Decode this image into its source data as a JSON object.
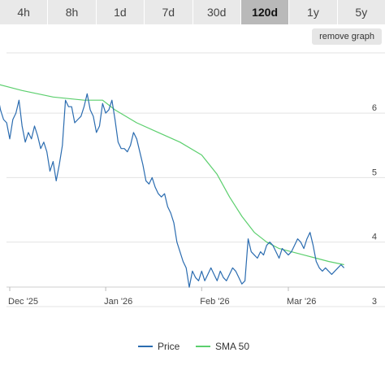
{
  "tabs": [
    {
      "label": "4h",
      "active": false
    },
    {
      "label": "8h",
      "active": false
    },
    {
      "label": "1d",
      "active": false
    },
    {
      "label": "7d",
      "active": false
    },
    {
      "label": "30d",
      "active": false
    },
    {
      "label": "120d",
      "active": true
    },
    {
      "label": "1y",
      "active": false
    },
    {
      "label": "5y",
      "active": false
    }
  ],
  "remove_graph_label": "remove graph",
  "legend": {
    "price_label": "Price",
    "sma_label": "SMA 50"
  },
  "colors": {
    "price": "#2b6cb0",
    "sma": "#5ccf6e",
    "grid": "#e3e3e3",
    "active_tab": "#b9b9b9"
  },
  "chart_data": {
    "type": "line",
    "title": "",
    "xlabel": "",
    "ylabel": "",
    "ylim": [
      3,
      7
    ],
    "yticks": [
      3,
      4,
      5,
      6
    ],
    "grid": "horizontal",
    "legend_position": "bottom",
    "xticks": [
      {
        "label": "Dec '25",
        "date": "2025-12-01"
      },
      {
        "label": "Jan '26",
        "date": "2026-01-01"
      },
      {
        "label": "Feb '26",
        "date": "2026-02-01"
      },
      {
        "label": "Mar '26",
        "date": "2026-03-01"
      }
    ],
    "xlim": [
      "2025-11-26",
      "2026-03-25"
    ],
    "series": [
      {
        "name": "Price",
        "points": [
          [
            "2025-11-26",
            6.2
          ],
          [
            "2025-11-27",
            6.3
          ],
          [
            "2025-11-28",
            6.05
          ],
          [
            "2025-11-29",
            5.9
          ],
          [
            "2025-11-30",
            5.85
          ],
          [
            "2025-12-01",
            5.6
          ],
          [
            "2025-12-02",
            5.9
          ],
          [
            "2025-12-03",
            6.0
          ],
          [
            "2025-12-04",
            6.2
          ],
          [
            "2025-12-05",
            5.8
          ],
          [
            "2025-12-06",
            5.55
          ],
          [
            "2025-12-07",
            5.7
          ],
          [
            "2025-12-08",
            5.6
          ],
          [
            "2025-12-09",
            5.8
          ],
          [
            "2025-12-10",
            5.65
          ],
          [
            "2025-12-11",
            5.45
          ],
          [
            "2025-12-12",
            5.55
          ],
          [
            "2025-12-13",
            5.4
          ],
          [
            "2025-12-14",
            5.1
          ],
          [
            "2025-12-15",
            5.25
          ],
          [
            "2025-12-16",
            4.95
          ],
          [
            "2025-12-17",
            5.2
          ],
          [
            "2025-12-18",
            5.5
          ],
          [
            "2025-12-19",
            6.2
          ],
          [
            "2025-12-20",
            6.1
          ],
          [
            "2025-12-21",
            6.1
          ],
          [
            "2025-12-22",
            5.85
          ],
          [
            "2025-12-23",
            5.9
          ],
          [
            "2025-12-24",
            5.95
          ],
          [
            "2025-12-25",
            6.1
          ],
          [
            "2025-12-26",
            6.3
          ],
          [
            "2025-12-27",
            6.05
          ],
          [
            "2025-12-28",
            5.95
          ],
          [
            "2025-12-29",
            5.7
          ],
          [
            "2025-12-30",
            5.8
          ],
          [
            "2025-12-31",
            6.15
          ],
          [
            "2026-01-01",
            6.0
          ],
          [
            "2026-01-02",
            6.05
          ],
          [
            "2026-01-03",
            6.2
          ],
          [
            "2026-01-04",
            5.9
          ],
          [
            "2026-01-05",
            5.55
          ],
          [
            "2026-01-06",
            5.45
          ],
          [
            "2026-01-07",
            5.45
          ],
          [
            "2026-01-08",
            5.4
          ],
          [
            "2026-01-09",
            5.5
          ],
          [
            "2026-01-10",
            5.7
          ],
          [
            "2026-01-11",
            5.6
          ],
          [
            "2026-01-12",
            5.4
          ],
          [
            "2026-01-13",
            5.2
          ],
          [
            "2026-01-14",
            4.95
          ],
          [
            "2026-01-15",
            4.9
          ],
          [
            "2026-01-16",
            5.0
          ],
          [
            "2026-01-17",
            4.85
          ],
          [
            "2026-01-18",
            4.75
          ],
          [
            "2026-01-19",
            4.7
          ],
          [
            "2026-01-20",
            4.75
          ],
          [
            "2026-01-21",
            4.55
          ],
          [
            "2026-01-22",
            4.45
          ],
          [
            "2026-01-23",
            4.3
          ],
          [
            "2026-01-24",
            4.0
          ],
          [
            "2026-01-25",
            3.85
          ],
          [
            "2026-01-26",
            3.7
          ],
          [
            "2026-01-27",
            3.6
          ],
          [
            "2026-01-28",
            3.3
          ],
          [
            "2026-01-29",
            3.55
          ],
          [
            "2026-01-30",
            3.45
          ],
          [
            "2026-01-31",
            3.4
          ],
          [
            "2026-02-01",
            3.55
          ],
          [
            "2026-02-02",
            3.4
          ],
          [
            "2026-02-03",
            3.5
          ],
          [
            "2026-02-04",
            3.6
          ],
          [
            "2026-02-05",
            3.5
          ],
          [
            "2026-02-06",
            3.4
          ],
          [
            "2026-02-07",
            3.55
          ],
          [
            "2026-02-08",
            3.45
          ],
          [
            "2026-02-09",
            3.4
          ],
          [
            "2026-02-10",
            3.5
          ],
          [
            "2026-02-11",
            3.6
          ],
          [
            "2026-02-12",
            3.55
          ],
          [
            "2026-02-13",
            3.45
          ],
          [
            "2026-02-14",
            3.35
          ],
          [
            "2026-02-15",
            3.4
          ],
          [
            "2026-02-16",
            4.05
          ],
          [
            "2026-02-17",
            3.85
          ],
          [
            "2026-02-18",
            3.8
          ],
          [
            "2026-02-19",
            3.75
          ],
          [
            "2026-02-20",
            3.85
          ],
          [
            "2026-02-21",
            3.8
          ],
          [
            "2026-02-22",
            3.95
          ],
          [
            "2026-02-23",
            4.0
          ],
          [
            "2026-02-24",
            3.95
          ],
          [
            "2026-02-25",
            3.85
          ],
          [
            "2026-02-26",
            3.75
          ],
          [
            "2026-02-27",
            3.9
          ],
          [
            "2026-02-28",
            3.85
          ],
          [
            "2026-03-01",
            3.8
          ],
          [
            "2026-03-02",
            3.85
          ],
          [
            "2026-03-03",
            3.95
          ],
          [
            "2026-03-04",
            4.05
          ],
          [
            "2026-03-05",
            4.0
          ],
          [
            "2026-03-06",
            3.9
          ],
          [
            "2026-03-07",
            4.05
          ],
          [
            "2026-03-08",
            4.15
          ],
          [
            "2026-03-09",
            3.95
          ],
          [
            "2026-03-10",
            3.7
          ],
          [
            "2026-03-11",
            3.6
          ],
          [
            "2026-03-12",
            3.55
          ],
          [
            "2026-03-13",
            3.6
          ],
          [
            "2026-03-14",
            3.55
          ],
          [
            "2026-03-15",
            3.5
          ],
          [
            "2026-03-16",
            3.55
          ],
          [
            "2026-03-17",
            3.6
          ],
          [
            "2026-03-18",
            3.65
          ],
          [
            "2026-03-19",
            3.6
          ]
        ]
      },
      {
        "name": "SMA 50",
        "points": [
          [
            "2025-11-24",
            6.65
          ],
          [
            "2025-11-27",
            6.45
          ],
          [
            "2025-12-05",
            6.35
          ],
          [
            "2025-12-15",
            6.25
          ],
          [
            "2025-12-25",
            6.2
          ],
          [
            "2025-12-31",
            6.2
          ],
          [
            "2026-01-04",
            6.05
          ],
          [
            "2026-01-11",
            5.85
          ],
          [
            "2026-01-18",
            5.7
          ],
          [
            "2026-01-25",
            5.55
          ],
          [
            "2026-02-01",
            5.35
          ],
          [
            "2026-02-06",
            5.05
          ],
          [
            "2026-02-10",
            4.7
          ],
          [
            "2026-02-14",
            4.4
          ],
          [
            "2026-02-18",
            4.15
          ],
          [
            "2026-02-22",
            4.0
          ],
          [
            "2026-02-26",
            3.9
          ],
          [
            "2026-03-02",
            3.85
          ],
          [
            "2026-03-06",
            3.8
          ],
          [
            "2026-03-10",
            3.75
          ],
          [
            "2026-03-14",
            3.7
          ],
          [
            "2026-03-19",
            3.65
          ]
        ]
      }
    ]
  }
}
